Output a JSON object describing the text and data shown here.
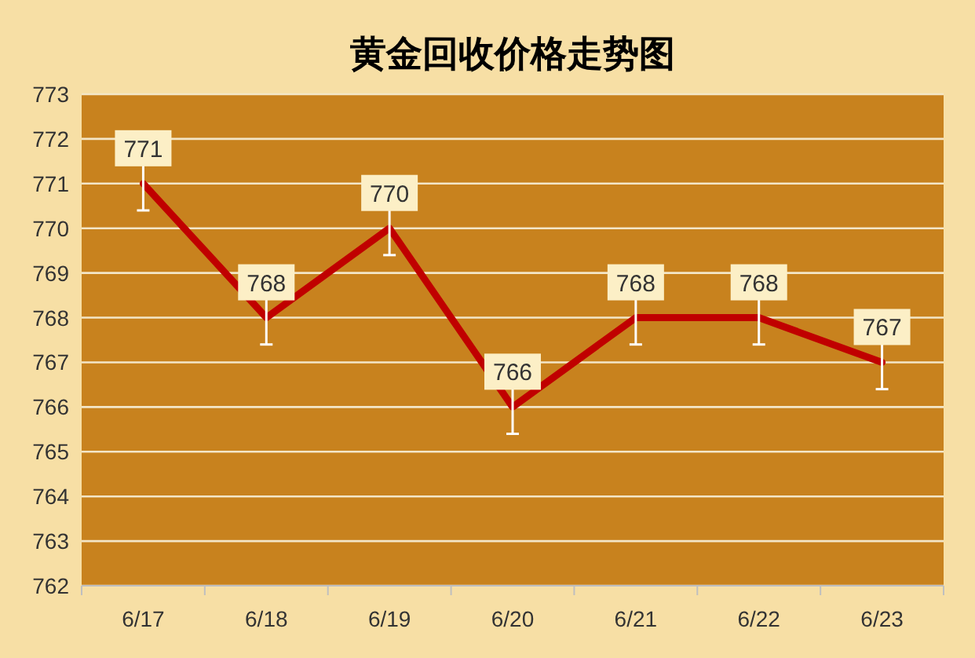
{
  "chart_data": {
    "type": "line",
    "title": "黄金回收价格走势图",
    "categories": [
      "6/17",
      "6/18",
      "6/19",
      "6/20",
      "6/21",
      "6/22",
      "6/23"
    ],
    "values": [
      771,
      768,
      770,
      766,
      768,
      768,
      767
    ],
    "errors": [
      0.6,
      0.6,
      0.6,
      0.6,
      0.6,
      0.6,
      0.6
    ],
    "color": "#c00000",
    "ylim": [
      762,
      773
    ],
    "yticks": [
      762,
      763,
      764,
      765,
      766,
      767,
      768,
      769,
      770,
      771,
      772,
      773
    ],
    "grid": "y",
    "data_labels": true,
    "marker": "none",
    "line_style": "solid"
  }
}
